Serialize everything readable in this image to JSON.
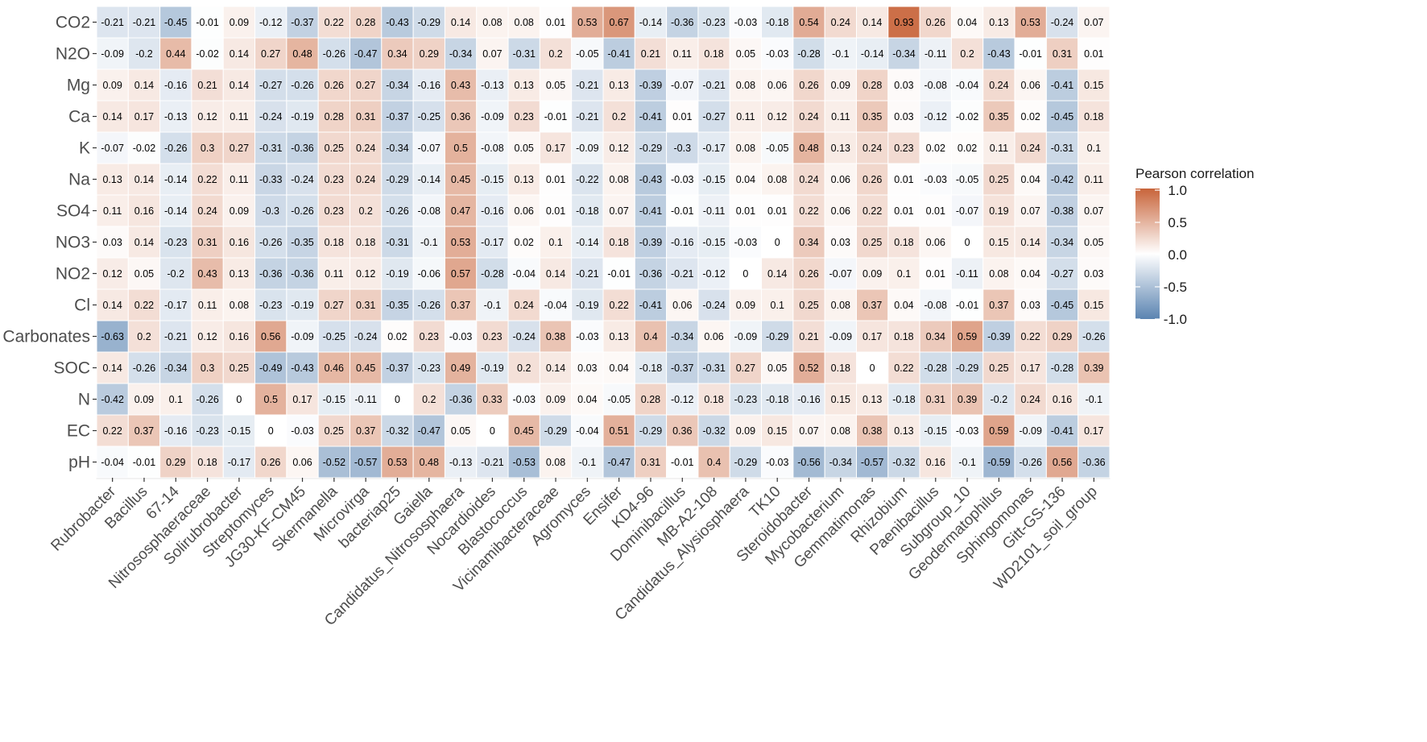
{
  "chart_data": {
    "type": "heatmap",
    "title": "",
    "xlabel": "",
    "ylabel": "",
    "rows": [
      "CO2",
      "N2O",
      "Mg",
      "Ca",
      "K",
      "Na",
      "SO4",
      "NO3",
      "NO2",
      "Cl",
      "Carbonates",
      "SOC",
      "N",
      "EC",
      "pH"
    ],
    "columns": [
      "Rubrobacter",
      "Bacillus",
      "67-14",
      "Nitrososphaeraceae",
      "Solirubrobacter",
      "Streptomyces",
      "JG30-KF-CM45",
      "Skermanella",
      "Microvirga",
      "bacteriap25",
      "Gaiella",
      "Candidatus_Nitrososphaera",
      "Nocardioides",
      "Blastococcus",
      "Vicinamibacteraceae",
      "Agromyces",
      "Ensifer",
      "KD4-96",
      "Dominibacillus",
      "MB-A2-108",
      "Candidatus_Alysiosphaera",
      "TK10",
      "Steroidobacter",
      "Mycobacterium",
      "Gemmatimonas",
      "Rhizobium",
      "Paenibacillus",
      "Subgroup_10",
      "Geodermatophilus",
      "Sphingomonas",
      "Gitt-GS-136",
      "WD2101_soil_group"
    ],
    "values": [
      [
        -0.21,
        -0.21,
        -0.45,
        -0.01,
        0.09,
        -0.12,
        -0.37,
        0.22,
        0.28,
        -0.43,
        -0.29,
        0.14,
        0.08,
        0.08,
        0.01,
        0.53,
        0.67,
        -0.14,
        -0.36,
        -0.23,
        -0.03,
        -0.18,
        0.54,
        0.24,
        0.14,
        0.93,
        0.26,
        0.04,
        0.13,
        0.53,
        -0.24,
        0.07
      ],
      [
        -0.09,
        -0.2,
        0.44,
        -0.02,
        0.14,
        0.27,
        0.48,
        -0.26,
        -0.47,
        0.34,
        0.29,
        -0.34,
        0.07,
        -0.31,
        0.2,
        -0.05,
        -0.41,
        0.21,
        0.11,
        0.18,
        0.05,
        -0.03,
        -0.28,
        -0.1,
        -0.14,
        -0.34,
        -0.11,
        0.2,
        -0.43,
        -0.01,
        0.31,
        0.01
      ],
      [
        0.09,
        0.14,
        -0.16,
        0.21,
        0.14,
        -0.27,
        -0.26,
        0.26,
        0.27,
        -0.34,
        -0.16,
        0.43,
        -0.13,
        0.13,
        0.05,
        -0.21,
        0.13,
        -0.39,
        -0.07,
        -0.21,
        0.08,
        0.06,
        0.26,
        0.09,
        0.28,
        0.03,
        -0.08,
        -0.04,
        0.24,
        0.06,
        -0.41,
        0.15
      ],
      [
        0.14,
        0.17,
        -0.13,
        0.12,
        0.11,
        -0.24,
        -0.19,
        0.28,
        0.31,
        -0.37,
        -0.25,
        0.36,
        -0.09,
        0.23,
        -0.01,
        -0.21,
        0.2,
        -0.41,
        0.01,
        -0.27,
        0.11,
        0.12,
        0.24,
        0.11,
        0.35,
        0.03,
        -0.12,
        -0.02,
        0.35,
        0.02,
        -0.45,
        0.18
      ],
      [
        -0.07,
        -0.02,
        -0.26,
        0.3,
        0.27,
        -0.31,
        -0.36,
        0.25,
        0.24,
        -0.34,
        -0.07,
        0.5,
        -0.08,
        0.05,
        0.17,
        -0.09,
        0.12,
        -0.29,
        -0.3,
        -0.17,
        0.08,
        -0.05,
        0.48,
        0.13,
        0.24,
        0.23,
        0.02,
        0.02,
        0.11,
        0.24,
        -0.31,
        0.1
      ],
      [
        0.13,
        0.14,
        -0.14,
        0.22,
        0.11,
        -0.33,
        -0.24,
        0.23,
        0.24,
        -0.29,
        -0.14,
        0.45,
        -0.15,
        0.13,
        0.01,
        -0.22,
        0.08,
        -0.43,
        -0.03,
        -0.15,
        0.04,
        0.08,
        0.24,
        0.06,
        0.26,
        0.01,
        -0.03,
        -0.05,
        0.25,
        0.04,
        -0.42,
        0.11
      ],
      [
        0.11,
        0.16,
        -0.14,
        0.24,
        0.09,
        -0.3,
        -0.26,
        0.23,
        0.2,
        -0.26,
        -0.08,
        0.47,
        -0.16,
        0.06,
        0.01,
        -0.18,
        0.07,
        -0.41,
        -0.01,
        -0.11,
        0.01,
        0.01,
        0.22,
        0.06,
        0.22,
        0.01,
        0.01,
        -0.07,
        0.19,
        0.07,
        -0.38,
        0.07
      ],
      [
        0.03,
        0.14,
        -0.23,
        0.31,
        0.16,
        -0.26,
        -0.35,
        0.18,
        0.18,
        -0.31,
        -0.1,
        0.53,
        -0.17,
        0.02,
        0.1,
        -0.14,
        0.18,
        -0.39,
        -0.16,
        -0.15,
        -0.03,
        0,
        0.34,
        0.03,
        0.25,
        0.18,
        0.06,
        0,
        0.15,
        0.14,
        -0.34,
        0.05
      ],
      [
        0.12,
        0.05,
        -0.2,
        0.43,
        0.13,
        -0.36,
        -0.36,
        0.11,
        0.12,
        -0.19,
        -0.06,
        0.57,
        -0.28,
        -0.04,
        0.14,
        -0.21,
        -0.01,
        -0.36,
        -0.21,
        -0.12,
        0,
        0.14,
        0.26,
        -0.07,
        0.09,
        0.1,
        0.01,
        -0.11,
        0.08,
        0.04,
        -0.27,
        0.03
      ],
      [
        0.14,
        0.22,
        -0.17,
        0.11,
        0.08,
        -0.23,
        -0.19,
        0.27,
        0.31,
        -0.35,
        -0.26,
        0.37,
        -0.1,
        0.24,
        -0.04,
        -0.19,
        0.22,
        -0.41,
        0.06,
        -0.24,
        0.09,
        0.1,
        0.25,
        0.08,
        0.37,
        0.04,
        -0.08,
        -0.01,
        0.37,
        0.03,
        -0.45,
        0.15
      ],
      [
        -0.63,
        0.2,
        -0.21,
        0.12,
        0.16,
        0.56,
        -0.09,
        -0.25,
        -0.24,
        0.02,
        0.23,
        -0.03,
        0.23,
        -0.24,
        0.38,
        -0.03,
        0.13,
        0.4,
        -0.34,
        0.06,
        -0.09,
        -0.29,
        0.21,
        -0.09,
        0.17,
        0.18,
        0.34,
        0.59,
        -0.39,
        0.22,
        0.29,
        -0.26
      ],
      [
        0.14,
        -0.26,
        -0.34,
        0.3,
        0.25,
        -0.49,
        -0.43,
        0.46,
        0.45,
        -0.37,
        -0.23,
        0.49,
        -0.19,
        0.2,
        0.14,
        0.03,
        0.04,
        -0.18,
        -0.37,
        -0.31,
        0.27,
        0.05,
        0.52,
        0.18,
        0,
        0.22,
        -0.28,
        -0.29,
        0.25,
        0.17,
        -0.28,
        0.39
      ],
      [
        -0.42,
        0.09,
        0.1,
        -0.26,
        0,
        0.5,
        0.17,
        -0.15,
        -0.11,
        0,
        0.2,
        -0.36,
        0.33,
        -0.03,
        0.09,
        0.04,
        -0.05,
        0.28,
        -0.12,
        0.18,
        -0.23,
        -0.18,
        -0.16,
        0.15,
        0.13,
        -0.18,
        0.31,
        0.39,
        -0.2,
        0.24,
        0.16,
        -0.1
      ],
      [
        0.22,
        0.37,
        -0.16,
        -0.23,
        -0.15,
        0,
        -0.03,
        0.25,
        0.37,
        -0.32,
        -0.47,
        0.05,
        0,
        0.45,
        -0.29,
        -0.04,
        0.51,
        -0.29,
        0.36,
        -0.32,
        0.09,
        0.15,
        0.07,
        0.08,
        0.38,
        0.13,
        -0.15,
        -0.03,
        0.59,
        -0.09,
        -0.41,
        0.17
      ],
      [
        -0.04,
        -0.01,
        0.29,
        0.18,
        -0.17,
        0.26,
        0.06,
        -0.52,
        -0.57,
        0.53,
        0.48,
        -0.13,
        -0.21,
        -0.53,
        0.08,
        -0.1,
        -0.47,
        0.31,
        -0.01,
        0.4,
        -0.29,
        -0.03,
        -0.56,
        -0.34,
        -0.57,
        -0.32,
        0.16,
        -0.1,
        -0.59,
        -0.26,
        0.56,
        -0.36
      ]
    ],
    "value_range": [
      -1.0,
      1.0
    ],
    "colors": {
      "low": "#5b84b1",
      "mid": "#ffffff",
      "high": "#c8643a"
    },
    "legend": {
      "title": "Pearson correlation",
      "ticks": [
        "1.0",
        "0.5",
        "0.0",
        "-0.5",
        "-1.0"
      ],
      "position": "right"
    },
    "grid": false
  }
}
